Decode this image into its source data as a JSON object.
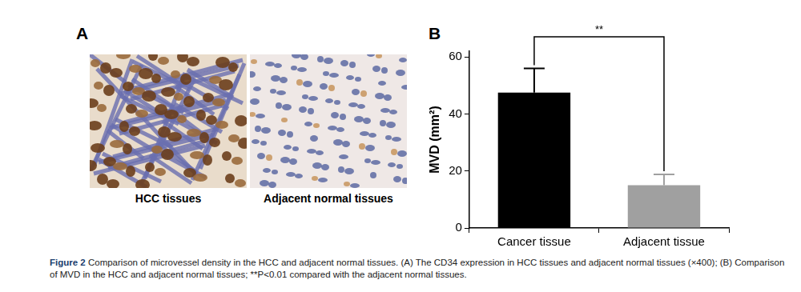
{
  "panel_a": {
    "letter": "A",
    "images": [
      "HCC tissues",
      "Adjacent normal tissues"
    ]
  },
  "chart_data": {
    "letter": "B",
    "type": "bar",
    "ylabel": "MVD (mm²)",
    "categories": [
      "Cancer tissue",
      "Adjacent tissue"
    ],
    "values": [
      47.5,
      15
    ],
    "errors": [
      8.5,
      3.8
    ],
    "colors": [
      "#000000",
      "#a0a0a0"
    ],
    "ylim": [
      0,
      62
    ],
    "yticks": [
      0,
      20,
      40,
      60
    ],
    "grid": false,
    "annotation": "**"
  },
  "caption": {
    "label": "Figure 2",
    "text": "Comparison of microvessel density in the HCC and adjacent normal tissues. (A) The CD34 expression in HCC tissues and adjacent normal tissues (×400); (B) Comparison of MVD in the HCC and adjacent normal tissues; **P<0.01 compared with the adjacent normal tissues."
  }
}
